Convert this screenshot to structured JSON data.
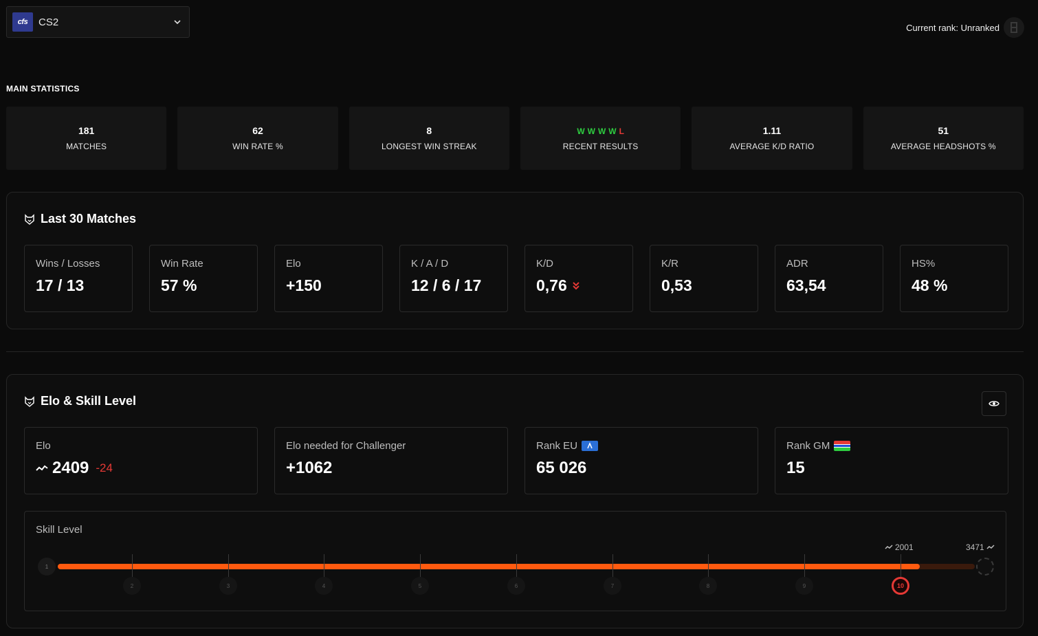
{
  "game_select": {
    "logo_text": "cfs",
    "name": "CS2"
  },
  "current_rank": {
    "label": "Current rank: Unranked"
  },
  "main_statistics": {
    "title": "MAIN STATISTICS",
    "cards": [
      {
        "value": "181",
        "label": "MATCHES"
      },
      {
        "value": "62",
        "label": "WIN RATE %"
      },
      {
        "value": "8",
        "label": "LONGEST WIN STREAK"
      },
      {
        "value": "",
        "label": "RECENT RESULTS"
      },
      {
        "value": "1.11",
        "label": "AVERAGE K/D RATIO"
      },
      {
        "value": "51",
        "label": "AVERAGE HEADSHOTS %"
      }
    ],
    "recent_results": [
      "W",
      "W",
      "W",
      "W",
      "L"
    ]
  },
  "last30": {
    "title": "Last 30 Matches",
    "cards": [
      {
        "label": "Wins / Losses",
        "value": "17 / 13"
      },
      {
        "label": "Win Rate",
        "value": "57 %"
      },
      {
        "label": "Elo",
        "value": "+150"
      },
      {
        "label": "K / A / D",
        "value": "12 / 6 / 17"
      },
      {
        "label": "K/D",
        "value": "0,76"
      },
      {
        "label": "K/R",
        "value": "0,53"
      },
      {
        "label": "ADR",
        "value": "63,54"
      },
      {
        "label": "HS%",
        "value": "48 %"
      }
    ]
  },
  "elo_skill": {
    "title": "Elo & Skill Level",
    "cards": [
      {
        "label": "Elo",
        "value": "2409",
        "delta": "-24"
      },
      {
        "label": "Elo needed for Challenger",
        "value": "+1062"
      },
      {
        "label": "Rank EU",
        "value": "65 026"
      },
      {
        "label": "Rank GM",
        "value": "15"
      }
    ],
    "skill": {
      "label": "Skill Level",
      "levels": [
        "1",
        "2",
        "3",
        "4",
        "5",
        "6",
        "7",
        "8",
        "9",
        "10"
      ],
      "current_level": "10",
      "level10_threshold": "2001",
      "challenger_threshold": "3471",
      "progress": 0.94
    }
  },
  "colors": {
    "accent": "#ff5a0f",
    "win": "#2ecc40",
    "loss": "#e53935"
  }
}
